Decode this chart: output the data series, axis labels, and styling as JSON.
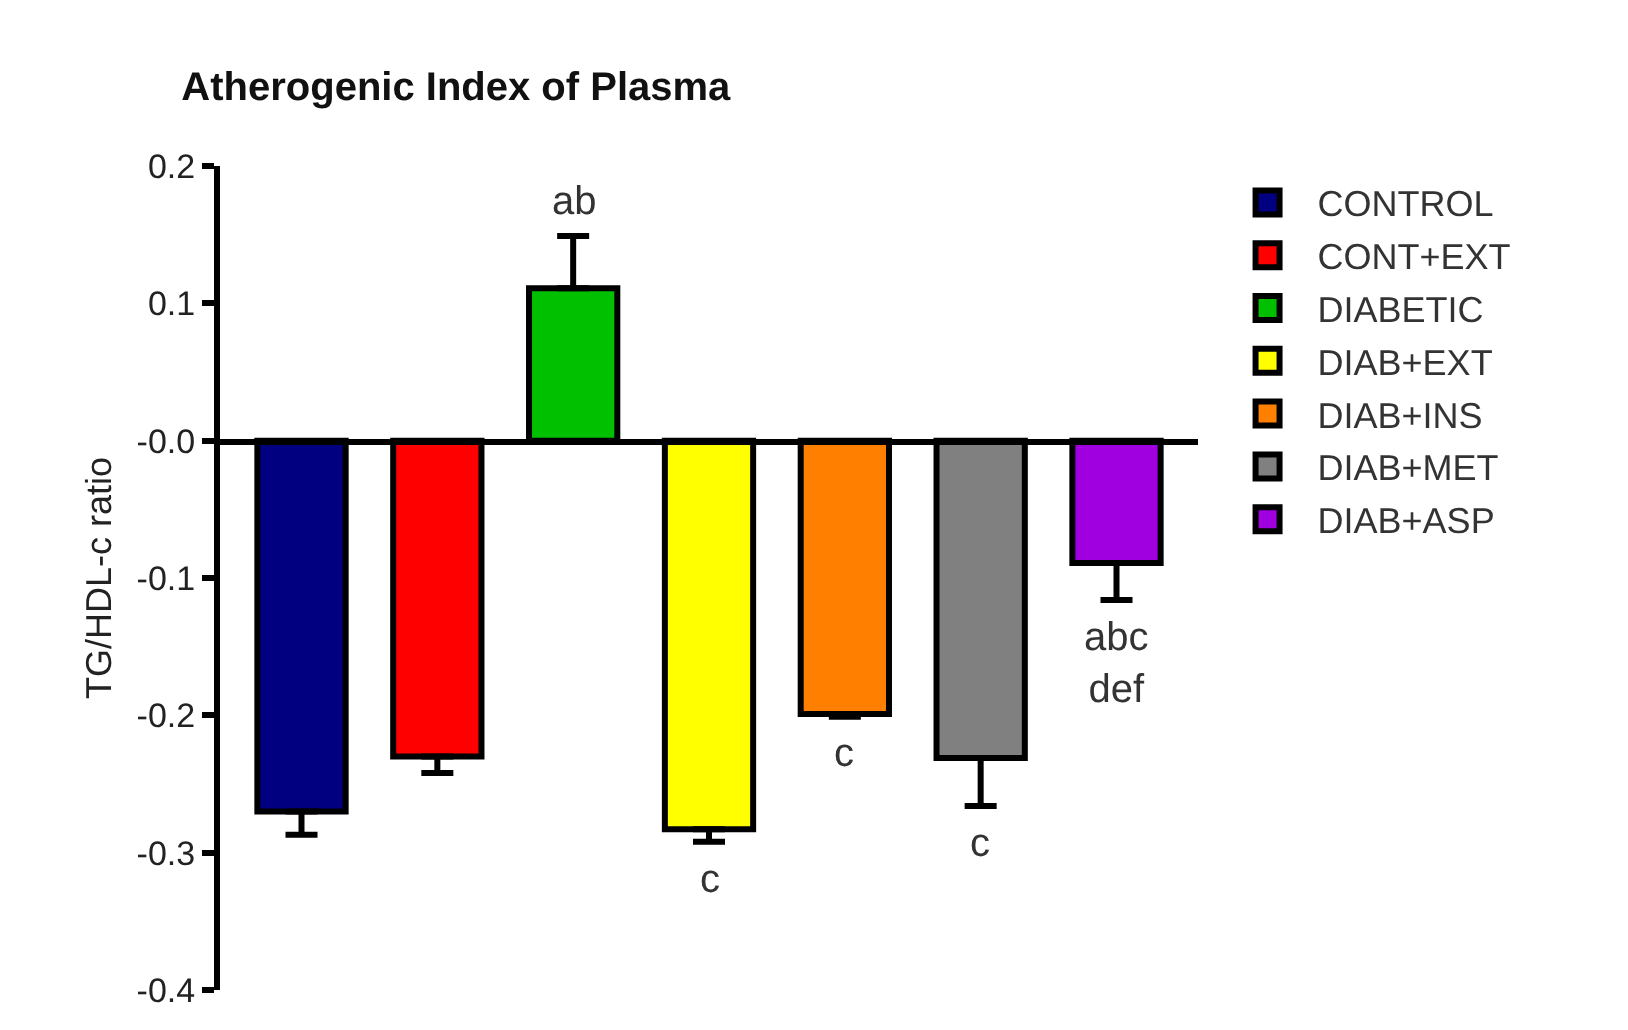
{
  "chart_data": {
    "type": "bar",
    "title": "Atherogenic Index of Plasma",
    "ylabel": "TG/HDL-c ratio",
    "categories": [
      null,
      null,
      null,
      null,
      null,
      null,
      null
    ],
    "series": [
      {
        "name": "CONTROL",
        "color": "#000080",
        "values": [
          -0.27,
          null,
          null,
          null,
          null,
          null,
          null
        ],
        "errors": [
          [
            -0.287,
            -0.27
          ],
          null,
          null,
          null,
          null,
          null,
          null
        ]
      },
      {
        "name": "CONT+EXT",
        "color": "#ff0000",
        "values": [
          null,
          -0.23,
          null,
          null,
          null,
          null,
          null
        ],
        "errors": [
          null,
          [
            -0.242,
            -0.23
          ],
          null,
          null,
          null,
          null,
          null
        ]
      },
      {
        "name": "DIABETIC",
        "color": "#00c000",
        "values": [
          null,
          null,
          0.111,
          null,
          null,
          null,
          null
        ],
        "errors": [
          null,
          null,
          [
            0.111,
            0.149
          ],
          null,
          null,
          null,
          null
        ],
        "value_labels": [
          null,
          null,
          "ab",
          null,
          null,
          null,
          null
        ]
      },
      {
        "name": "DIAB+EXT",
        "color": "#ffff00",
        "values": [
          null,
          null,
          null,
          -0.283,
          null,
          null,
          null
        ],
        "errors": [
          null,
          null,
          null,
          [
            -0.292,
            -0.283
          ],
          null,
          null,
          null
        ],
        "value_labels": [
          null,
          null,
          null,
          "c",
          null,
          null,
          null
        ]
      },
      {
        "name": "DIAB+INS",
        "color": "#ff8000",
        "values": [
          null,
          null,
          null,
          null,
          -0.199,
          null,
          null
        ],
        "errors": [
          null,
          null,
          null,
          null,
          [
            -0.201,
            -0.199
          ],
          null,
          null
        ],
        "value_labels": [
          null,
          null,
          null,
          null,
          "c",
          null,
          null
        ]
      },
      {
        "name": "DIAB+MET",
        "color": "#808080",
        "values": [
          null,
          null,
          null,
          null,
          null,
          -0.231,
          null
        ],
        "errors": [
          null,
          null,
          null,
          null,
          null,
          [
            -0.266,
            -0.231
          ],
          null
        ],
        "value_labels": [
          null,
          null,
          null,
          null,
          null,
          "c",
          null
        ]
      },
      {
        "name": "DIAB+ASP",
        "color": "#a000e0",
        "values": [
          null,
          null,
          null,
          null,
          null,
          null,
          -0.089
        ],
        "errors": [
          null,
          null,
          null,
          null,
          null,
          null,
          [
            -0.116,
            -0.089
          ]
        ],
        "value_labels": [
          null,
          null,
          null,
          null,
          null,
          null,
          "abc\ndef"
        ]
      }
    ],
    "ylim": [
      -0.4,
      0.2
    ],
    "yticks": [
      -0.4,
      -0.3,
      -0.2,
      -0.1,
      {
        "value": 0,
        "label": "-0.0"
      },
      0.1,
      0.2
    ],
    "legend": "top right"
  }
}
